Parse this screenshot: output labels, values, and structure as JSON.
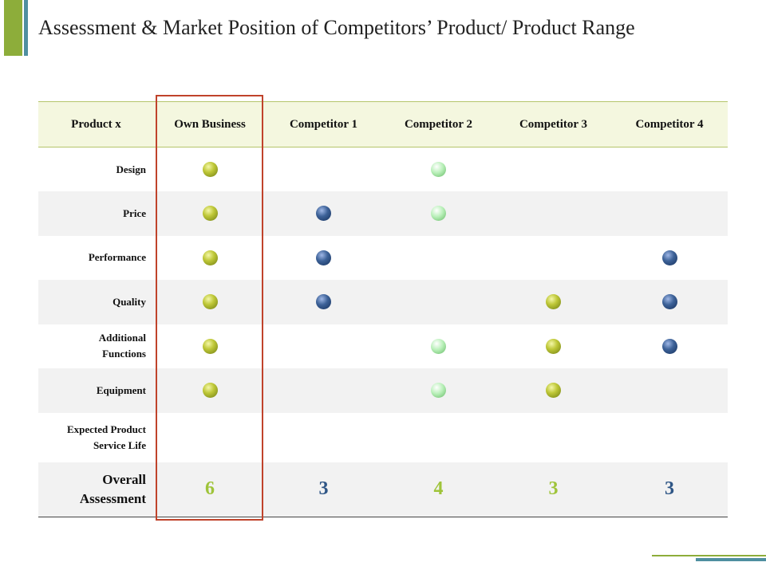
{
  "title": "Assessment & Market Position of Competitors’ Product/ Product Range",
  "header": [
    "Product x",
    "Own Business",
    "Competitor 1",
    "Competitor 2",
    "Competitor 3",
    "Competitor 4"
  ],
  "colors": {
    "olive": "#bfc838",
    "mint": "#b9f0b9",
    "navy": "#3d6298",
    "highlight": "#c0432b",
    "green_score": "#9fc43a",
    "navy_score": "#2f5686"
  },
  "rows": [
    {
      "label": "Design",
      "cells": [
        "olive",
        "",
        "mint",
        "",
        ""
      ]
    },
    {
      "label": "Price",
      "cells": [
        "olive",
        "navy",
        "mint",
        "",
        ""
      ]
    },
    {
      "label": "Performance",
      "cells": [
        "olive",
        "navy",
        "",
        "",
        "navy"
      ]
    },
    {
      "label": "Quality",
      "cells": [
        "olive",
        "navy",
        "",
        "olive",
        "navy"
      ]
    },
    {
      "label_lines": [
        "Additional",
        "Functions"
      ],
      "cells": [
        "olive",
        "",
        "mint",
        "olive",
        "navy"
      ]
    },
    {
      "label": "Equipment",
      "cells": [
        "olive",
        "",
        "mint",
        "olive",
        ""
      ]
    },
    {
      "label_lines": [
        "Expected Product",
        "Service Life"
      ],
      "cells": [
        "",
        "",
        "",
        "",
        ""
      ]
    }
  ],
  "overall": {
    "label_lines": [
      "Overall",
      "Assessment"
    ],
    "scores": [
      "6",
      "3",
      "4",
      "3",
      "3"
    ],
    "score_colors": [
      "green",
      "navy",
      "green",
      "green",
      "navy"
    ]
  }
}
